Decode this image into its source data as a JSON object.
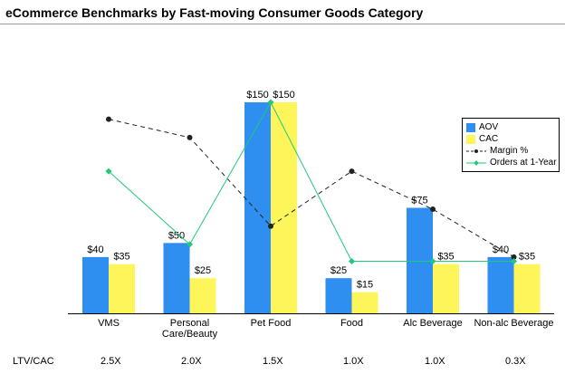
{
  "title": "eCommerce Benchmarks by Fast-moving Consumer Goods Category",
  "ltv_label": "LTV/CAC",
  "ltv_values": [
    "2.5X",
    "2.0X",
    "1.5X",
    "1.0X",
    "1.0X",
    "0.3X"
  ],
  "colors": {
    "aov": "#2f8ff0",
    "cac": "#fdf55a",
    "margin": "#222222",
    "orders": "#21c97a"
  },
  "chart_data": {
    "type": "bar",
    "title": "eCommerce Benchmarks by Fast-moving Consumer Goods Category",
    "categories": [
      "VMS",
      "Personal Care/Beauty",
      "Pet Food",
      "Food",
      "Alc Beverage",
      "Non-alc Beverage"
    ],
    "category_lines": [
      [
        "VMS"
      ],
      [
        "Personal",
        "Care/Beauty"
      ],
      [
        "Pet Food"
      ],
      [
        "Food"
      ],
      [
        "Alc Beverage"
      ],
      [
        "Non-alc Beverage"
      ]
    ],
    "ylim": [
      0,
      150
    ],
    "series": [
      {
        "name": "AOV",
        "type": "bar",
        "values": [
          40,
          50,
          150,
          25,
          75,
          40
        ],
        "labels": [
          "$40",
          "$50",
          "$150",
          "$25",
          "$75",
          "$40"
        ]
      },
      {
        "name": "CAC",
        "type": "bar",
        "values": [
          35,
          25,
          150,
          15,
          35,
          35
        ],
        "labels": [
          "$35",
          "$25",
          "$150",
          "$15",
          "$35",
          "$35"
        ]
      },
      {
        "name": "Margin %",
        "type": "line",
        "style": "dashed",
        "values": [
          138,
          125,
          62,
          101,
          74,
          40
        ]
      },
      {
        "name": "Orders at 1-Year",
        "type": "line",
        "style": "solid",
        "values": [
          101,
          49,
          150,
          37,
          37,
          37
        ]
      }
    ],
    "legend_position": "right",
    "grid": false
  }
}
